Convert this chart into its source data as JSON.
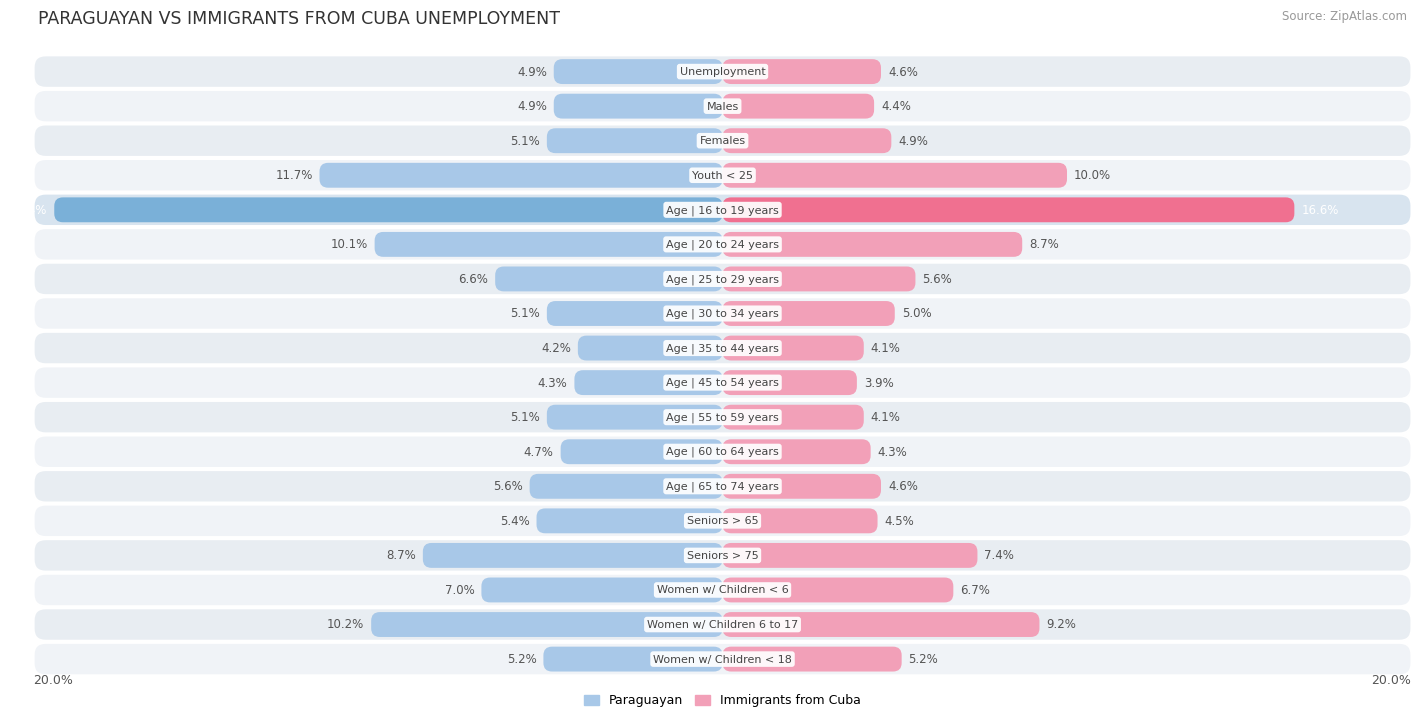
{
  "title": "PARAGUAYAN VS IMMIGRANTS FROM CUBA UNEMPLOYMENT",
  "source": "Source: ZipAtlas.com",
  "categories": [
    "Unemployment",
    "Males",
    "Females",
    "Youth < 25",
    "Age | 16 to 19 years",
    "Age | 20 to 24 years",
    "Age | 25 to 29 years",
    "Age | 30 to 34 years",
    "Age | 35 to 44 years",
    "Age | 45 to 54 years",
    "Age | 55 to 59 years",
    "Age | 60 to 64 years",
    "Age | 65 to 74 years",
    "Seniors > 65",
    "Seniors > 75",
    "Women w/ Children < 6",
    "Women w/ Children 6 to 17",
    "Women w/ Children < 18"
  ],
  "paraguayan": [
    4.9,
    4.9,
    5.1,
    11.7,
    19.4,
    10.1,
    6.6,
    5.1,
    4.2,
    4.3,
    5.1,
    4.7,
    5.6,
    5.4,
    8.7,
    7.0,
    10.2,
    5.2
  ],
  "cuba": [
    4.6,
    4.4,
    4.9,
    10.0,
    16.6,
    8.7,
    5.6,
    5.0,
    4.1,
    3.9,
    4.1,
    4.3,
    4.6,
    4.5,
    7.4,
    6.7,
    9.2,
    5.2
  ],
  "bar_color_paraguayan": "#a8c8e8",
  "bar_color_cuba": "#f2a0b8",
  "highlight_paraguayan": "#7ab0d8",
  "highlight_cuba": "#f07090",
  "row_bg_odd": "#e8edf2",
  "row_bg_even": "#f0f3f7",
  "highlight_row_bg": "#d8e4ef",
  "label_color": "#666666",
  "value_color": "#555555",
  "highlight_value_color": "#ffffff",
  "legend_paraguayan": "Paraguayan",
  "legend_cuba": "Immigrants from Cuba",
  "max_val": 20.0,
  "axis_label": "20.0%"
}
